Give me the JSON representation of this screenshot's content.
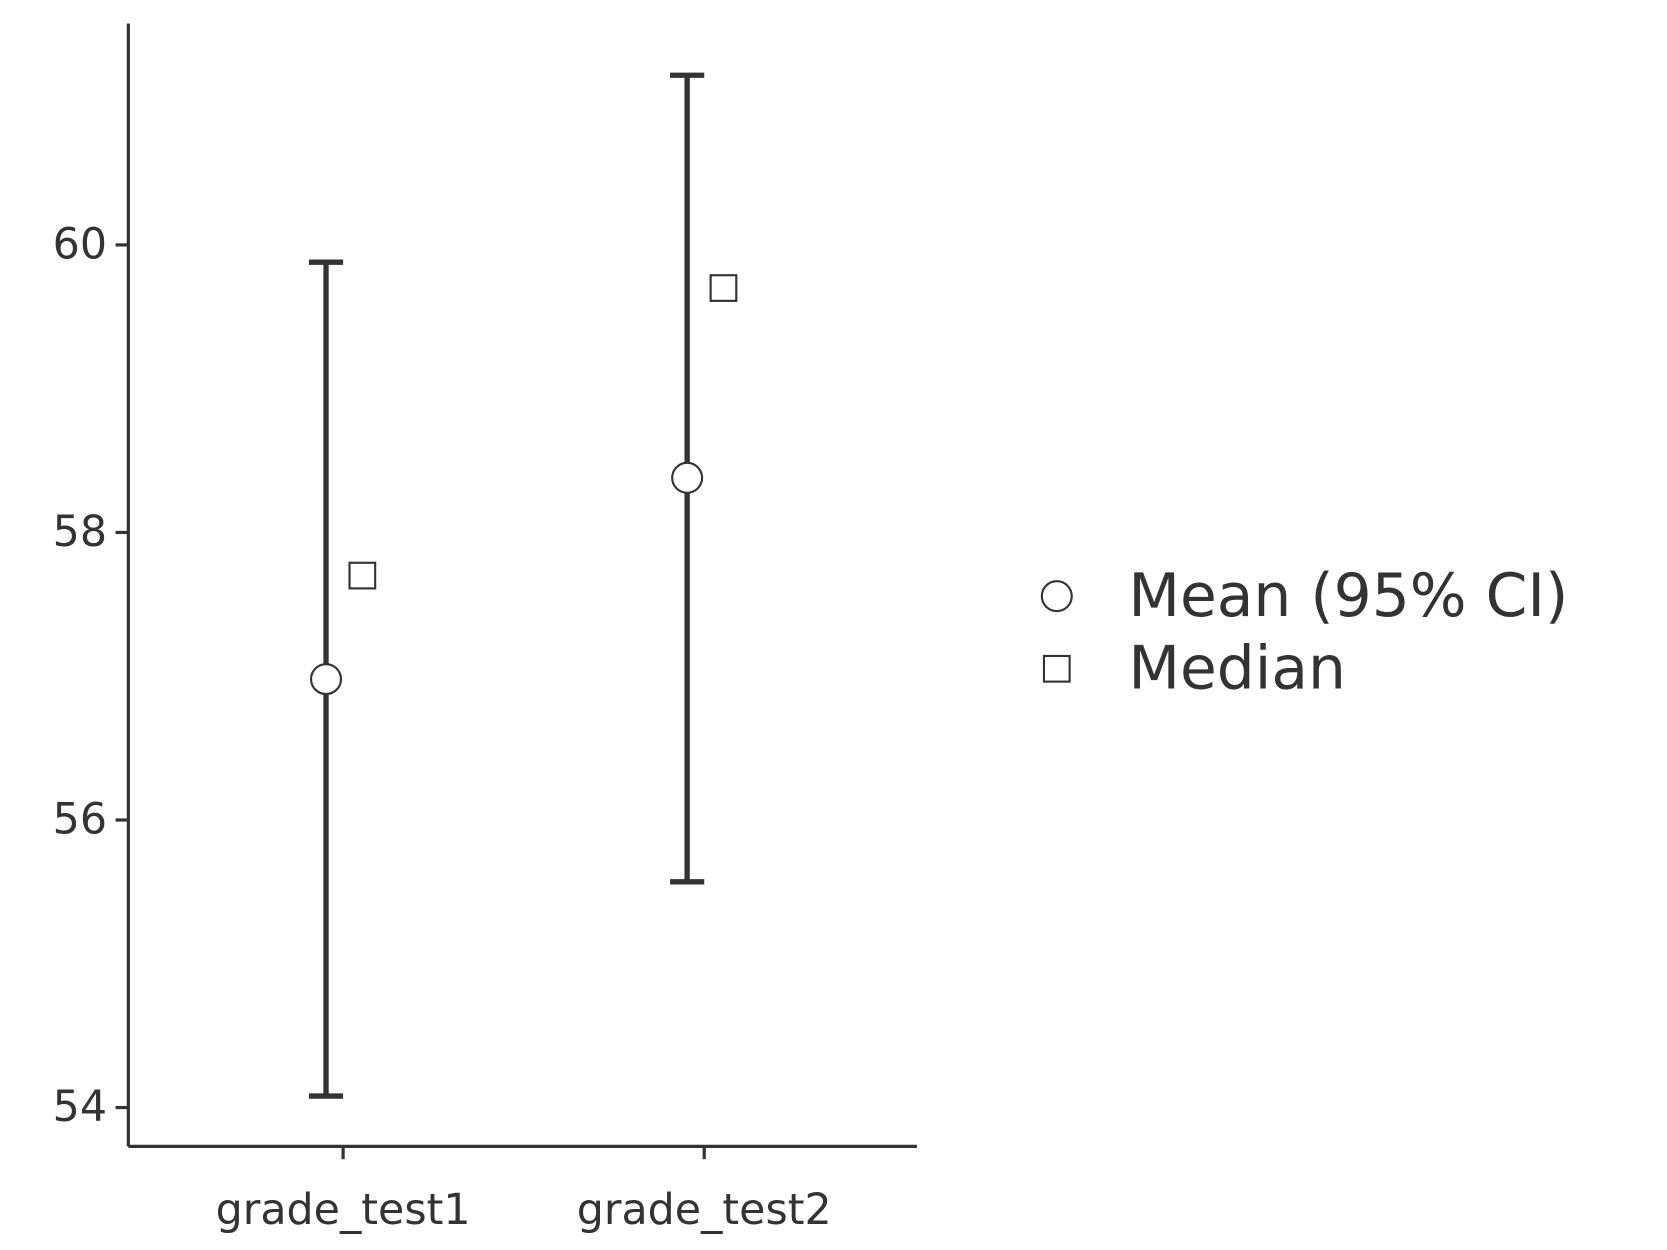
{
  "chart_data": {
    "type": "errorbar",
    "categories": [
      "grade_test1",
      "grade_test2"
    ],
    "series": [
      {
        "name": "Mean (95% CI)",
        "color": "#333333",
        "marker": "circle",
        "values": [
          56.98,
          58.38
        ],
        "ci_low": [
          54.08,
          55.57
        ],
        "ci_high": [
          59.88,
          61.18
        ]
      },
      {
        "name": "Median",
        "color": "#333333",
        "marker": "square",
        "values": [
          57.7,
          59.7
        ]
      }
    ],
    "ylim": [
      53.73,
      61.54
    ],
    "yticks": [
      54,
      56,
      58,
      60
    ],
    "grid": false,
    "legend": "right"
  }
}
